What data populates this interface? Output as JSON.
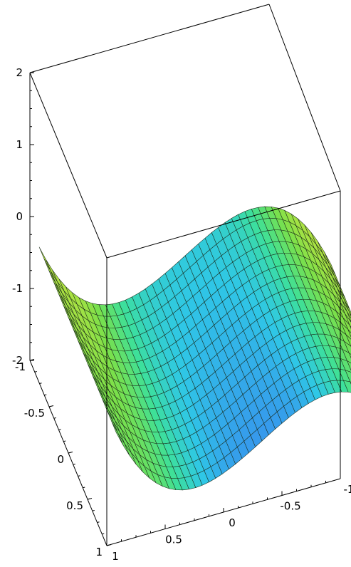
{
  "chart_data": {
    "type": "surface3d",
    "title": "",
    "axes": {
      "x": {
        "range": [
          -1,
          1
        ],
        "ticks": [
          "-1",
          "-0.5",
          "0",
          "0.5",
          "1"
        ]
      },
      "y": {
        "range": [
          -1,
          1
        ],
        "ticks": [
          "-1",
          "-0.5",
          "0",
          "0.5",
          "1"
        ]
      },
      "z": {
        "range": [
          -2,
          2
        ],
        "ticks": [
          "2",
          "1",
          "0",
          "-1",
          "-2"
        ]
      }
    },
    "surface": {
      "description_formula": "z = x^3 - x (approx), ribbon thin in y",
      "x_range": [
        -1.25,
        1.25
      ],
      "y_range": [
        -1,
        1
      ],
      "colormap": [
        "#3a7ff0",
        "#2fc7e6",
        "#3de09a",
        "#7be04a",
        "#e4e43a",
        "#f08a30"
      ]
    },
    "grid": false,
    "legend": "none"
  }
}
